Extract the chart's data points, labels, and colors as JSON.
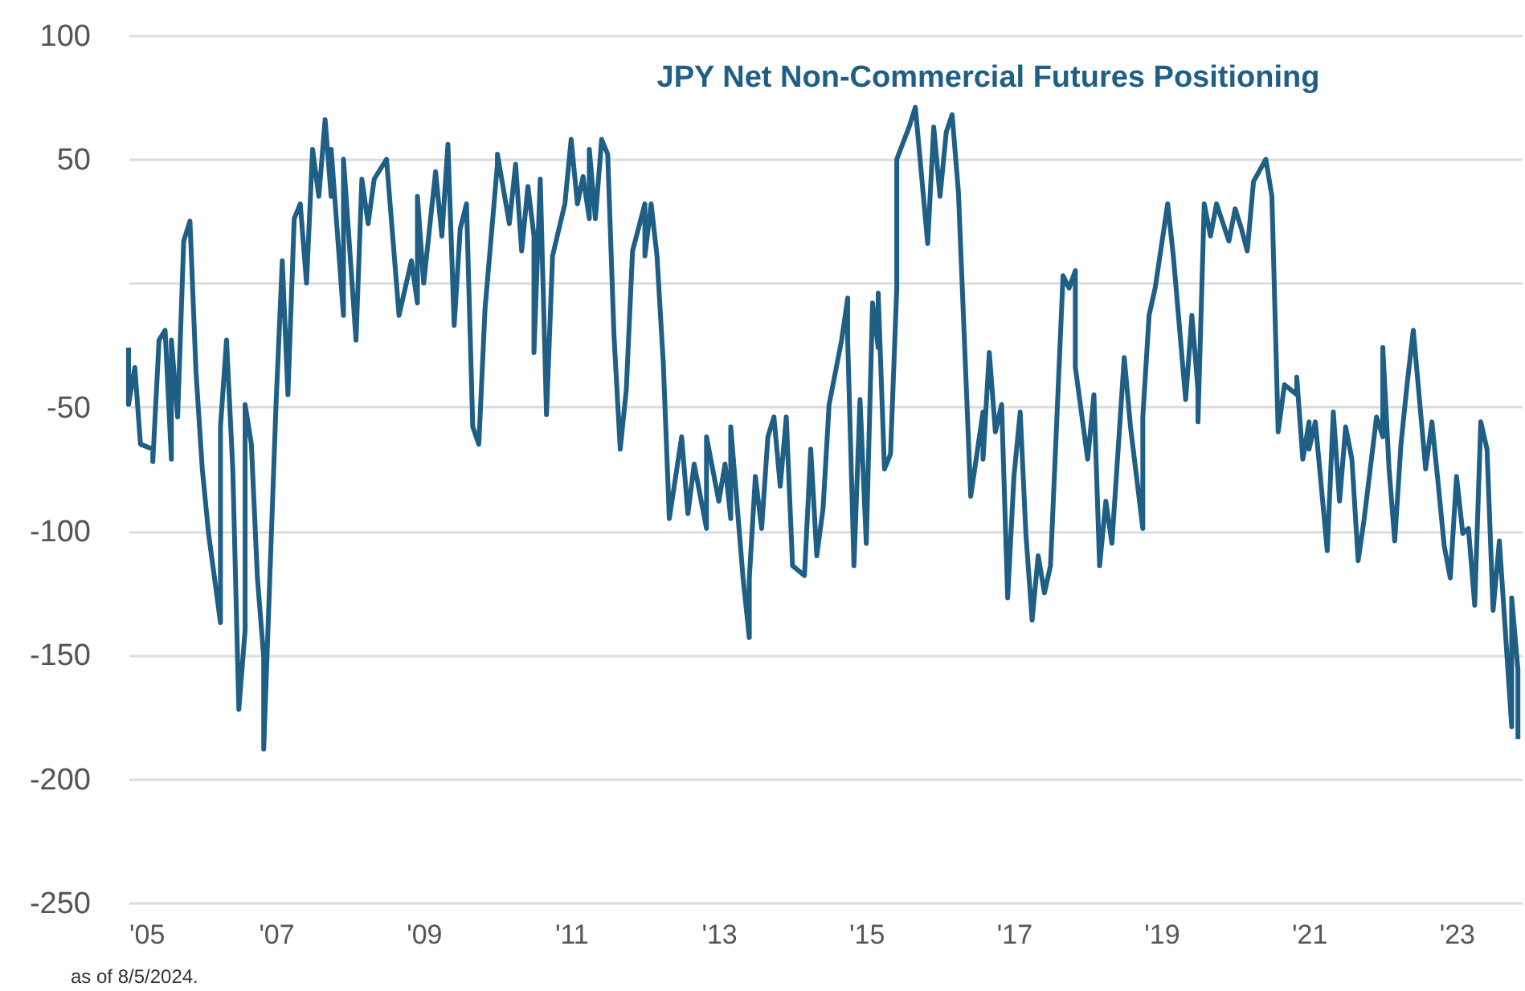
{
  "chart_data": {
    "type": "line",
    "title": "JPY Net Non-Commercial Futures Positioning",
    "annotations": [
      "as of 8/5/2024."
    ],
    "x": [
      "2005-01",
      "2005-01",
      "2005-02",
      "2005-03",
      "2005-05",
      "2005-05",
      "2005-06",
      "2005-07",
      "2005-08",
      "2005-08",
      "2005-09",
      "2005-10",
      "2005-11",
      "2005-12",
      "2006-01",
      "2006-02",
      "2006-04",
      "2006-04",
      "2006-05",
      "2006-06",
      "2006-07",
      "2006-08",
      "2006-08",
      "2006-09",
      "2006-10",
      "2006-11",
      "2006-11",
      "2007-01",
      "2007-02",
      "2007-03",
      "2007-04",
      "2007-05",
      "2007-06",
      "2007-07",
      "2007-08",
      "2007-09",
      "2007-10",
      "2007-10",
      "2007-12",
      "2007-12",
      "2008-02",
      "2008-03",
      "2008-04",
      "2008-05",
      "2008-07",
      "2008-09",
      "2008-11",
      "2008-12",
      "2008-12",
      "2009-01",
      "2009-03",
      "2009-04",
      "2009-05",
      "2009-06",
      "2009-07",
      "2009-08",
      "2009-09",
      "2009-10",
      "2009-11",
      "2010-01",
      "2010-01",
      "2010-03",
      "2010-04",
      "2010-05",
      "2010-06",
      "2010-07",
      "2010-07",
      "2010-08",
      "2010-09",
      "2010-10",
      "2010-12",
      "2011-01",
      "2011-02",
      "2011-03",
      "2011-04",
      "2011-04",
      "2011-05",
      "2011-06",
      "2011-07",
      "2011-08",
      "2011-09",
      "2011-10",
      "2011-11",
      "2012-01",
      "2012-01",
      "2012-02",
      "2012-03",
      "2012-04",
      "2012-05",
      "2012-07",
      "2012-08",
      "2012-09",
      "2012-11",
      "2012-11",
      "2013-01",
      "2013-02",
      "2013-03",
      "2013-03",
      "2013-05",
      "2013-06",
      "2013-06",
      "2013-07",
      "2013-08",
      "2013-09",
      "2013-10",
      "2013-11",
      "2013-12",
      "2014-01",
      "2014-03",
      "2014-04",
      "2014-05",
      "2014-06",
      "2014-07",
      "2014-09",
      "2014-10",
      "2014-10",
      "2014-11",
      "2014-12",
      "2015-01",
      "2015-02",
      "2015-03",
      "2015-03",
      "2015-04",
      "2015-05",
      "2015-06",
      "2015-06",
      "2015-08",
      "2015-09",
      "2015-11",
      "2015-12",
      "2016-01",
      "2016-02",
      "2016-03",
      "2016-04",
      "2016-06",
      "2016-08",
      "2016-08",
      "2016-09",
      "2016-10",
      "2016-11",
      "2016-12",
      "2017-01",
      "2017-02",
      "2017-03",
      "2017-04",
      "2017-05",
      "2017-06",
      "2017-07",
      "2017-09",
      "2017-10",
      "2017-11",
      "2017-11",
      "2018-01",
      "2018-02",
      "2018-03",
      "2018-04",
      "2018-05",
      "2018-07",
      "2018-08",
      "2018-10",
      "2018-10",
      "2018-11",
      "2018-12",
      "2019-02",
      "2019-03",
      "2019-05",
      "2019-06",
      "2019-07",
      "2019-07",
      "2019-08",
      "2019-09",
      "2019-10",
      "2019-12",
      "2020-01",
      "2020-02",
      "2020-03",
      "2020-04",
      "2020-06",
      "2020-07",
      "2020-08",
      "2020-09",
      "2020-11",
      "2020-11",
      "2020-12",
      "2021-01",
      "2021-01",
      "2021-02",
      "2021-04",
      "2021-05",
      "2021-06",
      "2021-07",
      "2021-08",
      "2021-09",
      "2021-10",
      "2021-12",
      "2022-01",
      "2022-01",
      "2022-02",
      "2022-03",
      "2022-04",
      "2022-05",
      "2022-06",
      "2022-08",
      "2022-09",
      "2022-10",
      "2022-11",
      "2022-12",
      "2023-01",
      "2023-02",
      "2023-03",
      "2023-04",
      "2023-05",
      "2023-06",
      "2023-07",
      "2023-08",
      "2023-10",
      "2023-10",
      "2023-11",
      "2023-11"
    ],
    "series": [
      {
        "color": "#1f5f85",
        "values": [
          -26,
          -49,
          -34,
          -65,
          -67,
          -72,
          -23,
          -19,
          -71,
          -23,
          -54,
          17,
          25,
          -36,
          -75,
          -101,
          -137,
          -58,
          -23,
          -75,
          -172,
          -140,
          -49,
          -65,
          -119,
          -151,
          -188,
          -49,
          9,
          -45,
          26,
          32,
          0,
          54,
          35,
          66,
          35,
          54,
          -13,
          50,
          -23,
          42,
          24,
          42,
          50,
          -13,
          9,
          -8,
          35,
          0,
          45,
          19,
          56,
          -17,
          22,
          32,
          -58,
          -65,
          -10,
          48,
          52,
          24,
          48,
          13,
          39,
          19,
          -28,
          42,
          -53,
          11,
          32,
          58,
          32,
          43,
          26,
          54,
          26,
          58,
          52,
          -21,
          -67,
          -43,
          13,
          32,
          11,
          32,
          11,
          -32,
          -95,
          -62,
          -93,
          -73,
          -99,
          -62,
          -88,
          -73,
          -95,
          -58,
          -119,
          -143,
          -119,
          -78,
          -99,
          -62,
          -54,
          -82,
          -54,
          -114,
          -118,
          -67,
          -110,
          -91,
          -49,
          -23,
          -6,
          -23,
          -114,
          -47,
          -105,
          -8,
          -26,
          -4,
          -75,
          -69,
          -2,
          50,
          63,
          71,
          16,
          63,
          35,
          61,
          68,
          37,
          -86,
          -52,
          -71,
          -28,
          -60,
          -49,
          -127,
          -78,
          -52,
          -101,
          -136,
          -110,
          -125,
          -114,
          3,
          -2,
          5,
          -34,
          -71,
          -45,
          -114,
          -88,
          -105,
          -30,
          -58,
          -99,
          -54,
          -13,
          -2,
          32,
          11,
          -47,
          -13,
          -43,
          -56,
          32,
          19,
          32,
          17,
          30,
          22,
          13,
          41,
          50,
          35,
          -60,
          -41,
          -45,
          -38,
          -71,
          -56,
          -67,
          -56,
          -108,
          -52,
          -88,
          -58,
          -71,
          -112,
          -95,
          -54,
          -62,
          -26,
          -75,
          -104,
          -65,
          -41,
          -19,
          -75,
          -56,
          -80,
          -106,
          -119,
          -78,
          -101,
          -99,
          -130,
          -56,
          -67,
          -132,
          -104,
          -179,
          -127,
          -156,
          -184
        ]
      }
    ],
    "xlim": [
      "2005-01-01",
      "2023-11-20"
    ],
    "xticks": [
      {
        "value": "2005-01-01",
        "label": "'05"
      },
      {
        "value": "2007-01-01",
        "label": "'07"
      },
      {
        "value": "2009-01-01",
        "label": "'09"
      },
      {
        "value": "2011-01-01",
        "label": "'11"
      },
      {
        "value": "2013-01-01",
        "label": "'13"
      },
      {
        "value": "2015-01-01",
        "label": "'15"
      },
      {
        "value": "2017-01-01",
        "label": "'17"
      },
      {
        "value": "2019-01-01",
        "label": "'19"
      },
      {
        "value": "2021-01-01",
        "label": "'21"
      },
      {
        "value": "2023-01-01",
        "label": "'23"
      }
    ],
    "ylim": [
      -250,
      100
    ],
    "yticks": [
      -250,
      -200,
      -150,
      -100,
      -50,
      {
        "value": 0,
        "label": null
      },
      50,
      100
    ],
    "grid": "y"
  }
}
